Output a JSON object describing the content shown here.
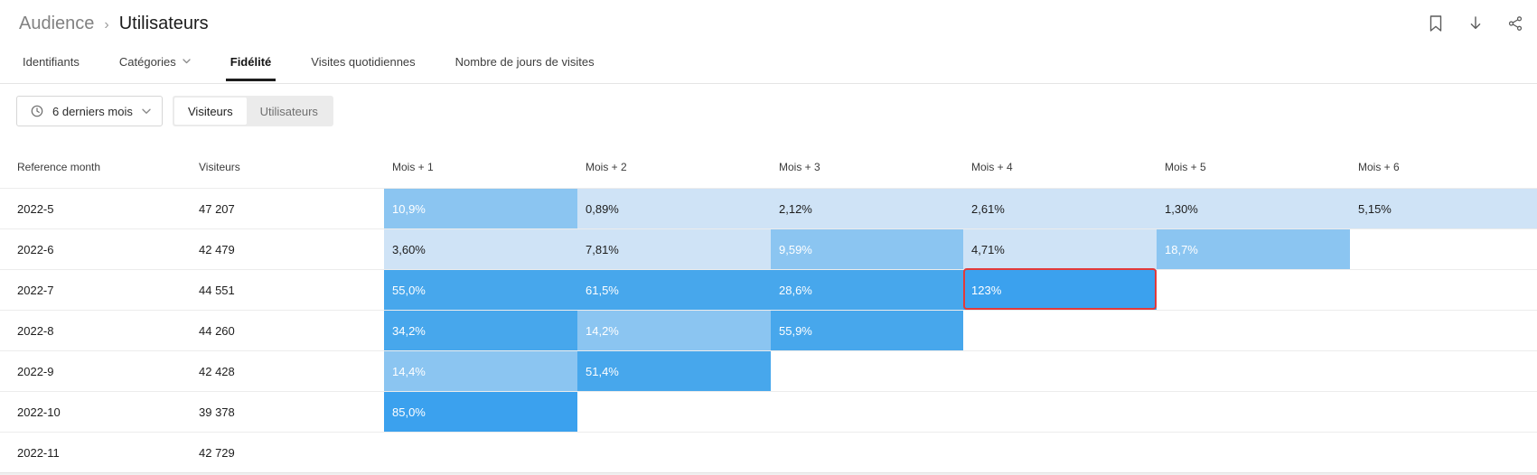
{
  "breadcrumb": {
    "section": "Audience",
    "separator": "›",
    "page": "Utilisateurs"
  },
  "topbar_icons": [
    {
      "name": "bookmark-icon"
    },
    {
      "name": "download-icon"
    },
    {
      "name": "share-icon"
    }
  ],
  "tabs": [
    {
      "label": "Identifiants",
      "active": false,
      "has_dropdown": false
    },
    {
      "label": "Catégories",
      "active": false,
      "has_dropdown": true
    },
    {
      "label": "Fidélité",
      "active": true,
      "has_dropdown": false
    },
    {
      "label": "Visites quotidiennes",
      "active": false,
      "has_dropdown": false
    },
    {
      "label": "Nombre de jours de visites",
      "active": false,
      "has_dropdown": false
    }
  ],
  "filters": {
    "date_range": {
      "label": "6 derniers mois",
      "icon": "clock-icon",
      "dropdown_icon": "chevron-down-icon"
    },
    "view_toggle": {
      "options": [
        {
          "label": "Visiteurs",
          "active": true
        },
        {
          "label": "Utilisateurs",
          "active": false
        }
      ]
    }
  },
  "table": {
    "columns": [
      "Reference month",
      "Visiteurs",
      "Mois + 1",
      "Mois + 2",
      "Mois + 3",
      "Mois + 4",
      "Mois + 5",
      "Mois + 6"
    ],
    "rows": [
      {
        "month": "2022-5",
        "visitors": "47 207",
        "cells": [
          {
            "value": "10,9%",
            "shade": "medium"
          },
          {
            "value": "0,89%",
            "shade": "light"
          },
          {
            "value": "2,12%",
            "shade": "light"
          },
          {
            "value": "2,61%",
            "shade": "light"
          },
          {
            "value": "1,30%",
            "shade": "light"
          },
          {
            "value": "5,15%",
            "shade": "light"
          }
        ]
      },
      {
        "month": "2022-6",
        "visitors": "42 479",
        "cells": [
          {
            "value": "3,60%",
            "shade": "light"
          },
          {
            "value": "7,81%",
            "shade": "light"
          },
          {
            "value": "9,59%",
            "shade": "medium"
          },
          {
            "value": "4,71%",
            "shade": "light"
          },
          {
            "value": "18,7%",
            "shade": "medium"
          },
          null
        ]
      },
      {
        "month": "2022-7",
        "visitors": "44 551",
        "cells": [
          {
            "value": "55,0%",
            "shade": "strong"
          },
          {
            "value": "61,5%",
            "shade": "strong"
          },
          {
            "value": "28,6%",
            "shade": "strong"
          },
          {
            "value": "123%",
            "shade": "vivid",
            "highlighted": true
          },
          null,
          null
        ]
      },
      {
        "month": "2022-8",
        "visitors": "44 260",
        "cells": [
          {
            "value": "34,2%",
            "shade": "strong"
          },
          {
            "value": "14,2%",
            "shade": "medium"
          },
          {
            "value": "55,9%",
            "shade": "strong"
          },
          null,
          null,
          null
        ]
      },
      {
        "month": "2022-9",
        "visitors": "42 428",
        "cells": [
          {
            "value": "14,4%",
            "shade": "medium"
          },
          {
            "value": "51,4%",
            "shade": "strong"
          },
          null,
          null,
          null,
          null
        ]
      },
      {
        "month": "2022-10",
        "visitors": "39 378",
        "cells": [
          {
            "value": "85,0%",
            "shade": "vivid"
          },
          null,
          null,
          null,
          null,
          null
        ]
      },
      {
        "month": "2022-11",
        "visitors": "42 729",
        "cells": [
          null,
          null,
          null,
          null,
          null,
          null
        ]
      }
    ]
  },
  "colors": {
    "shade_light": "#cfe3f6",
    "shade_medium": "#8bc5f1",
    "shade_strong": "#47a7ec",
    "shade_vivid": "#3ba1ee",
    "highlight_border": "#e23a3a",
    "active_tab_underline": "#1d1d1d"
  }
}
